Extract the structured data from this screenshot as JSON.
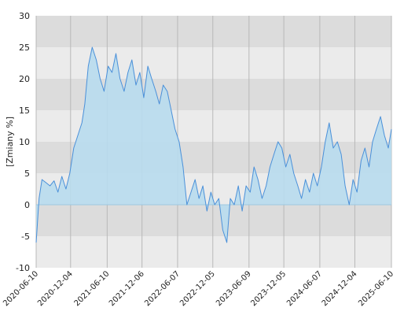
{
  "chart_data": {
    "type": "area",
    "ylabel": "[Zmiany %]",
    "xlabel": "",
    "ylim": [
      -10,
      30
    ],
    "yticks": [
      "30",
      "25",
      "20",
      "15",
      "10",
      "5",
      "0",
      "-5",
      "-10"
    ],
    "xticks": [
      "2020-06-10",
      "2020-12-04",
      "2021-06-10",
      "2021-12-06",
      "2022-06-07",
      "2022-12-05",
      "2023-06-09",
      "2023-12-05",
      "2024-06-07",
      "2024-12-04",
      "2025-06-10"
    ],
    "x": [
      "2020-06-10",
      "2020-06-25",
      "2020-07-10",
      "2020-07-31",
      "2020-08-20",
      "2020-09-10",
      "2020-09-30",
      "2020-10-20",
      "2020-11-10",
      "2020-11-30",
      "2020-12-20",
      "2021-01-10",
      "2021-01-31",
      "2021-02-15",
      "2021-03-05",
      "2021-03-25",
      "2021-04-15",
      "2021-05-05",
      "2021-05-25",
      "2021-06-15",
      "2021-07-05",
      "2021-07-25",
      "2021-08-15",
      "2021-09-05",
      "2021-09-25",
      "2021-10-15",
      "2021-11-05",
      "2021-11-25",
      "2021-12-15",
      "2022-01-05",
      "2022-01-25",
      "2022-02-15",
      "2022-03-05",
      "2022-03-25",
      "2022-04-15",
      "2022-05-05",
      "2022-05-25",
      "2022-06-15",
      "2022-07-05",
      "2022-07-25",
      "2022-08-15",
      "2022-09-05",
      "2022-09-25",
      "2022-10-15",
      "2022-11-05",
      "2022-11-25",
      "2022-12-15",
      "2023-01-05",
      "2023-01-25",
      "2023-02-15",
      "2023-03-05",
      "2023-03-25",
      "2023-04-15",
      "2023-05-05",
      "2023-05-25",
      "2023-06-15",
      "2023-07-05",
      "2023-07-25",
      "2023-08-15",
      "2023-09-05",
      "2023-09-25",
      "2023-10-15",
      "2023-11-05",
      "2023-11-25",
      "2023-12-15",
      "2024-01-05",
      "2024-01-25",
      "2024-02-15",
      "2024-03-05",
      "2024-03-25",
      "2024-04-15",
      "2024-05-05",
      "2024-05-25",
      "2024-06-15",
      "2024-07-05",
      "2024-07-25",
      "2024-08-15",
      "2024-09-05",
      "2024-09-25",
      "2024-10-15",
      "2024-11-05",
      "2024-11-25",
      "2024-12-15",
      "2025-01-05",
      "2025-01-25",
      "2025-02-15",
      "2025-03-05",
      "2025-03-25",
      "2025-04-15",
      "2025-05-05",
      "2025-05-25",
      "2025-06-10"
    ],
    "series": [
      {
        "values": [
          -6,
          1,
          4,
          3.5,
          3,
          3.8,
          2,
          4.5,
          2.5,
          5,
          9,
          11,
          13,
          16,
          22,
          25,
          23,
          20,
          18,
          22,
          21,
          24,
          20,
          18,
          21,
          23,
          19,
          21,
          17,
          22,
          20,
          18,
          16,
          19,
          18,
          15,
          12,
          10,
          6,
          0,
          2,
          4,
          1,
          3,
          -1,
          2,
          0,
          1,
          -4,
          -6,
          1,
          0,
          3,
          -1,
          3,
          2,
          6,
          4,
          1,
          3,
          6,
          8,
          10,
          9,
          6,
          8,
          5,
          3,
          1,
          4,
          2,
          5,
          3,
          6,
          10,
          13,
          9,
          10,
          8,
          3,
          0,
          4,
          2,
          7,
          9,
          6,
          10,
          12,
          14,
          11,
          9,
          12
        ]
      }
    ],
    "colors": {
      "line": "#4a90d9",
      "fill": "#b8dcee",
      "band_dark": "#dcdcdc",
      "band_light": "#ebebeb",
      "grid_vertical": "#b8b8b8",
      "zero_line": "#9fc8e0"
    },
    "grid": true
  }
}
